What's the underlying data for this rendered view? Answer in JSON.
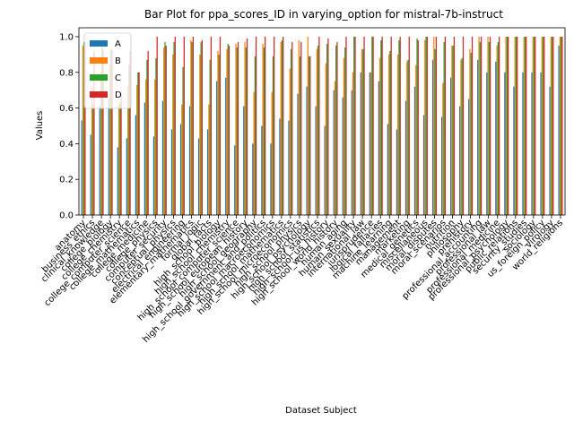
{
  "chart_data": {
    "type": "bar",
    "title": "Bar Plot for ppa_scores_ID in varying_option for mistral-7b-instruct",
    "xlabel": "Dataset Subject",
    "ylabel": "Values",
    "ylim": [
      0,
      1.05
    ],
    "yticks": [
      "0.0",
      "0.2",
      "0.4",
      "0.6",
      "0.8",
      "1.0"
    ],
    "grid": false,
    "legend_position": "upper-left",
    "categories": [
      "anatomy",
      "business_ethics",
      "clinical_knowledge",
      "college_biology",
      "college_chemistry",
      "college_computer_science",
      "college_mathematics",
      "college_medicine",
      "college_physics",
      "computer_security",
      "conceptual_physics",
      "electrical_engineering",
      "elementary_mathematics",
      "formal_logic",
      "global_facts",
      "high_school_biology",
      "high_school_chemistry",
      "high_school_computer_science",
      "high_school_european_history",
      "high_school_geography",
      "high_school_government_and_politics",
      "high_school_macroeconomics",
      "high_school_mathematics",
      "high_school_microeconomics",
      "high_school_physics",
      "high_school_psychology",
      "high_school_statistics",
      "high_school_us_history",
      "high_school_world_history",
      "human_aging",
      "human_sexuality",
      "international_law",
      "jurisprudence",
      "logical_fallacies",
      "machine_learning",
      "management",
      "marketing",
      "medical_genetics",
      "miscellaneous",
      "moral_disputes",
      "moral_scenarios",
      "nutrition",
      "philosophy",
      "prehistory",
      "professional_accounting",
      "professional_law",
      "professional_medicine",
      "professional_psychology",
      "public_relations",
      "security_studies",
      "sociology",
      "us_foreign_policy",
      "virology",
      "world_religions"
    ],
    "series": [
      {
        "name": "A",
        "color": "#1f77b4",
        "values": [
          0.53,
          0.45,
          0.61,
          0.66,
          0.38,
          0.43,
          0.56,
          0.63,
          0.44,
          0.64,
          0.48,
          0.51,
          0.61,
          0.43,
          0.48,
          0.75,
          0.77,
          0.39,
          0.61,
          0.4,
          0.5,
          0.4,
          0.54,
          0.53,
          0.68,
          0.72,
          0.61,
          0.5,
          0.7,
          0.66,
          0.7,
          0.8,
          0.8,
          0.75,
          0.51,
          0.48,
          0.64,
          0.72,
          0.56,
          0.87,
          0.55,
          0.77,
          0.61,
          0.65,
          0.87,
          0.8,
          0.86,
          0.8,
          0.72,
          0.8,
          0.8,
          0.8,
          0.72,
          0.95
        ]
      },
      {
        "name": "B",
        "color": "#ff7f0e",
        "values": [
          0.95,
          0.72,
          0.8,
          0.84,
          0.62,
          0.72,
          0.73,
          0.76,
          0.76,
          0.94,
          0.9,
          0.62,
          0.98,
          0.9,
          0.62,
          0.92,
          0.93,
          0.96,
          0.97,
          0.69,
          0.96,
          0.69,
          0.97,
          0.82,
          0.98,
          1.0,
          0.93,
          0.85,
          0.75,
          0.88,
          0.8,
          0.93,
          0.8,
          0.88,
          0.9,
          0.9,
          0.86,
          0.84,
          0.98,
          1.0,
          0.74,
          0.95,
          0.87,
          0.93,
          1.0,
          1.0,
          0.95,
          1.0,
          1.0,
          1.0,
          1.0,
          1.0,
          1.0,
          1.0
        ]
      },
      {
        "name": "C",
        "color": "#2ca02c",
        "values": [
          0.97,
          0.62,
          0.97,
          0.93,
          0.63,
          0.84,
          0.8,
          0.87,
          0.88,
          0.97,
          0.97,
          0.83,
          0.97,
          0.97,
          0.87,
          0.9,
          0.96,
          0.94,
          0.94,
          0.89,
          0.94,
          0.89,
          0.98,
          0.93,
          0.89,
          0.89,
          0.95,
          0.96,
          0.95,
          0.94,
          1.0,
          0.93,
          1.0,
          0.98,
          0.92,
          0.98,
          0.87,
          0.99,
          1.0,
          0.93,
          0.97,
          0.95,
          0.88,
          0.91,
          0.97,
          0.97,
          0.97,
          1.0,
          1.0,
          1.0,
          1.0,
          1.0,
          1.0,
          1.0
        ]
      },
      {
        "name": "D",
        "color": "#d62728",
        "values": [
          0.97,
          0.92,
          0.93,
          0.92,
          0.68,
          0.92,
          0.8,
          0.92,
          1.0,
          0.95,
          1.0,
          1.0,
          1.0,
          0.98,
          1.0,
          1.0,
          0.95,
          0.97,
          0.99,
          1.0,
          1.0,
          1.0,
          1.0,
          0.97,
          0.97,
          0.89,
          1.0,
          0.99,
          0.97,
          1.0,
          1.0,
          1.0,
          1.0,
          1.0,
          1.0,
          1.0,
          1.0,
          0.98,
          1.0,
          1.0,
          1.0,
          1.0,
          1.0,
          1.0,
          1.0,
          1.0,
          1.0,
          1.0,
          1.0,
          1.0,
          1.0,
          1.0,
          1.0,
          1.0
        ]
      }
    ]
  }
}
